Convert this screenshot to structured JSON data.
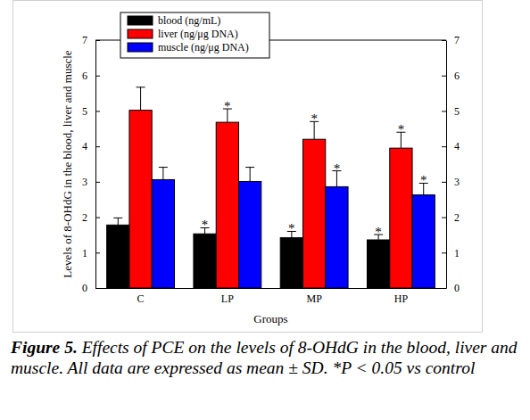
{
  "chart_data": {
    "type": "bar",
    "categories": [
      "C",
      "LP",
      "MP",
      "HP"
    ],
    "x_label": "Groups",
    "y_label": "Levels of 8-OHdG in the blood, liver and muscle",
    "ylim": [
      0,
      7
    ],
    "yticks": [
      0,
      1,
      2,
      3,
      4,
      5,
      6,
      7
    ],
    "y2lim": [
      0,
      7
    ],
    "y2ticks": [
      0,
      1,
      2,
      3,
      4,
      5,
      6,
      7
    ],
    "legend": "upper left",
    "series": [
      {
        "name": "blood (ng/mL)",
        "color": "#000000",
        "values": [
          1.78,
          1.53,
          1.42,
          1.36
        ],
        "errors": [
          0.2,
          0.17,
          0.18,
          0.15
        ],
        "significance": [
          null,
          "*",
          "*",
          "*"
        ]
      },
      {
        "name": "liver (ng/μg DNA)",
        "color": "#ff0000",
        "values": [
          5.02,
          4.68,
          4.2,
          3.95
        ],
        "errors": [
          0.65,
          0.38,
          0.5,
          0.45
        ],
        "significance": [
          null,
          "*",
          "*",
          "*"
        ]
      },
      {
        "name": "muscle (ng/μg DNA)",
        "color": "#0000ff",
        "values": [
          3.06,
          3.01,
          2.86,
          2.63
        ],
        "errors": [
          0.35,
          0.4,
          0.45,
          0.33
        ],
        "significance": [
          null,
          null,
          "*",
          "*"
        ]
      }
    ],
    "caption": {
      "label": "Figure 5.",
      "text": "Effects of PCE on the levels of 8-OHdG in the blood, liver and muscle. All data are expressed as mean ± SD. *P < 0.05 vs control"
    }
  }
}
